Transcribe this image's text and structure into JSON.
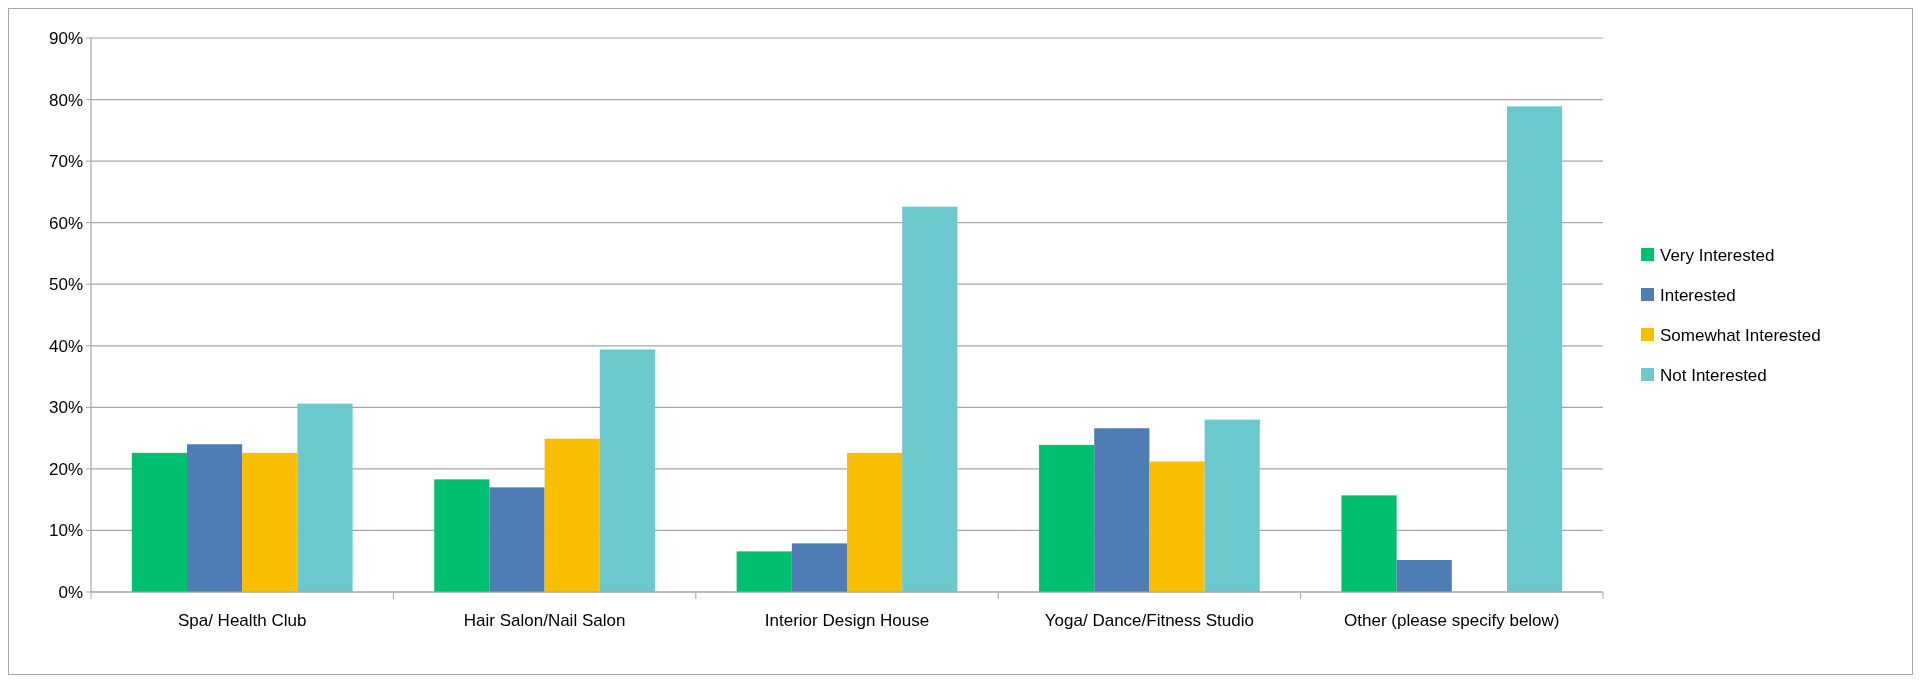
{
  "chart_data": {
    "type": "bar",
    "categories": [
      "Spa/ Health Club",
      "Hair Salon/Nail Salon",
      "Interior Design House",
      "Yoga/ Dance/Fitness Studio",
      "Other (please specify below)"
    ],
    "series": [
      {
        "name": "Very Interested",
        "color": "#00bf6f",
        "values": [
          22.6,
          18.3,
          6.6,
          23.9,
          15.7
        ]
      },
      {
        "name": "Interested",
        "color": "#507cb6",
        "values": [
          24.0,
          17.0,
          7.9,
          26.6,
          5.2
        ]
      },
      {
        "name": "Somewhat Interested",
        "color": "#f9be00",
        "values": [
          22.6,
          24.9,
          22.6,
          21.2,
          0
        ]
      },
      {
        "name": "Not Interested",
        "color": "#6bc8cd",
        "values": [
          30.6,
          39.4,
          62.6,
          28.0,
          78.9
        ]
      }
    ],
    "ylim": [
      0,
      90
    ],
    "yticks": [
      {
        "value": 0,
        "label": "0%"
      },
      {
        "value": 10,
        "label": "10%"
      },
      {
        "value": 20,
        "label": "20%"
      },
      {
        "value": 30,
        "label": "30%"
      },
      {
        "value": 40,
        "label": "40%"
      },
      {
        "value": 50,
        "label": "50%"
      },
      {
        "value": 60,
        "label": "60%"
      },
      {
        "value": 70,
        "label": "70%"
      },
      {
        "value": 80,
        "label": "80%"
      },
      {
        "value": 90,
        "label": "90%"
      }
    ],
    "grid": "y",
    "legend": "right"
  }
}
